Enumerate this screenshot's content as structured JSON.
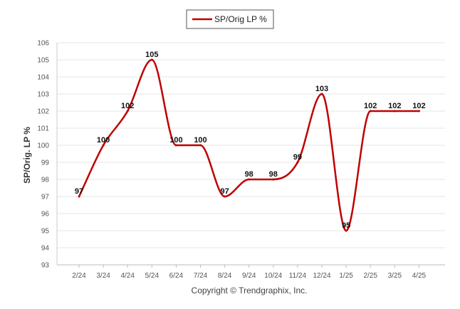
{
  "chart_data": {
    "type": "line",
    "x": [
      "2/24",
      "3/24",
      "4/24",
      "5/24",
      "6/24",
      "7/24",
      "8/24",
      "9/24",
      "10/24",
      "11/24",
      "12/24",
      "1/25",
      "2/25",
      "3/25",
      "4/25"
    ],
    "series": [
      {
        "name": "SP/Orig LP %",
        "values": [
          97,
          100,
          102,
          105,
          100,
          100,
          97,
          98,
          98,
          99,
          103,
          95,
          102,
          102,
          102
        ]
      }
    ],
    "data_labels": [
      "97",
      "100",
      "102",
      "105",
      "100",
      "100",
      "97",
      "98",
      "98",
      "99",
      "103",
      "95",
      "102",
      "102",
      "102"
    ],
    "ylabel": "SP/Orig. LP %",
    "ylim": [
      93,
      106
    ],
    "y_ticks": [
      "93",
      "94",
      "95",
      "96",
      "97",
      "98",
      "99",
      "100",
      "101",
      "102",
      "103",
      "104",
      "105",
      "106"
    ],
    "grid": "horizontal",
    "legend_position": "top-center",
    "smooth": true,
    "line_color": "#c00000"
  },
  "footer": {
    "copyright": "Copyright © Trendgraphix, Inc."
  }
}
